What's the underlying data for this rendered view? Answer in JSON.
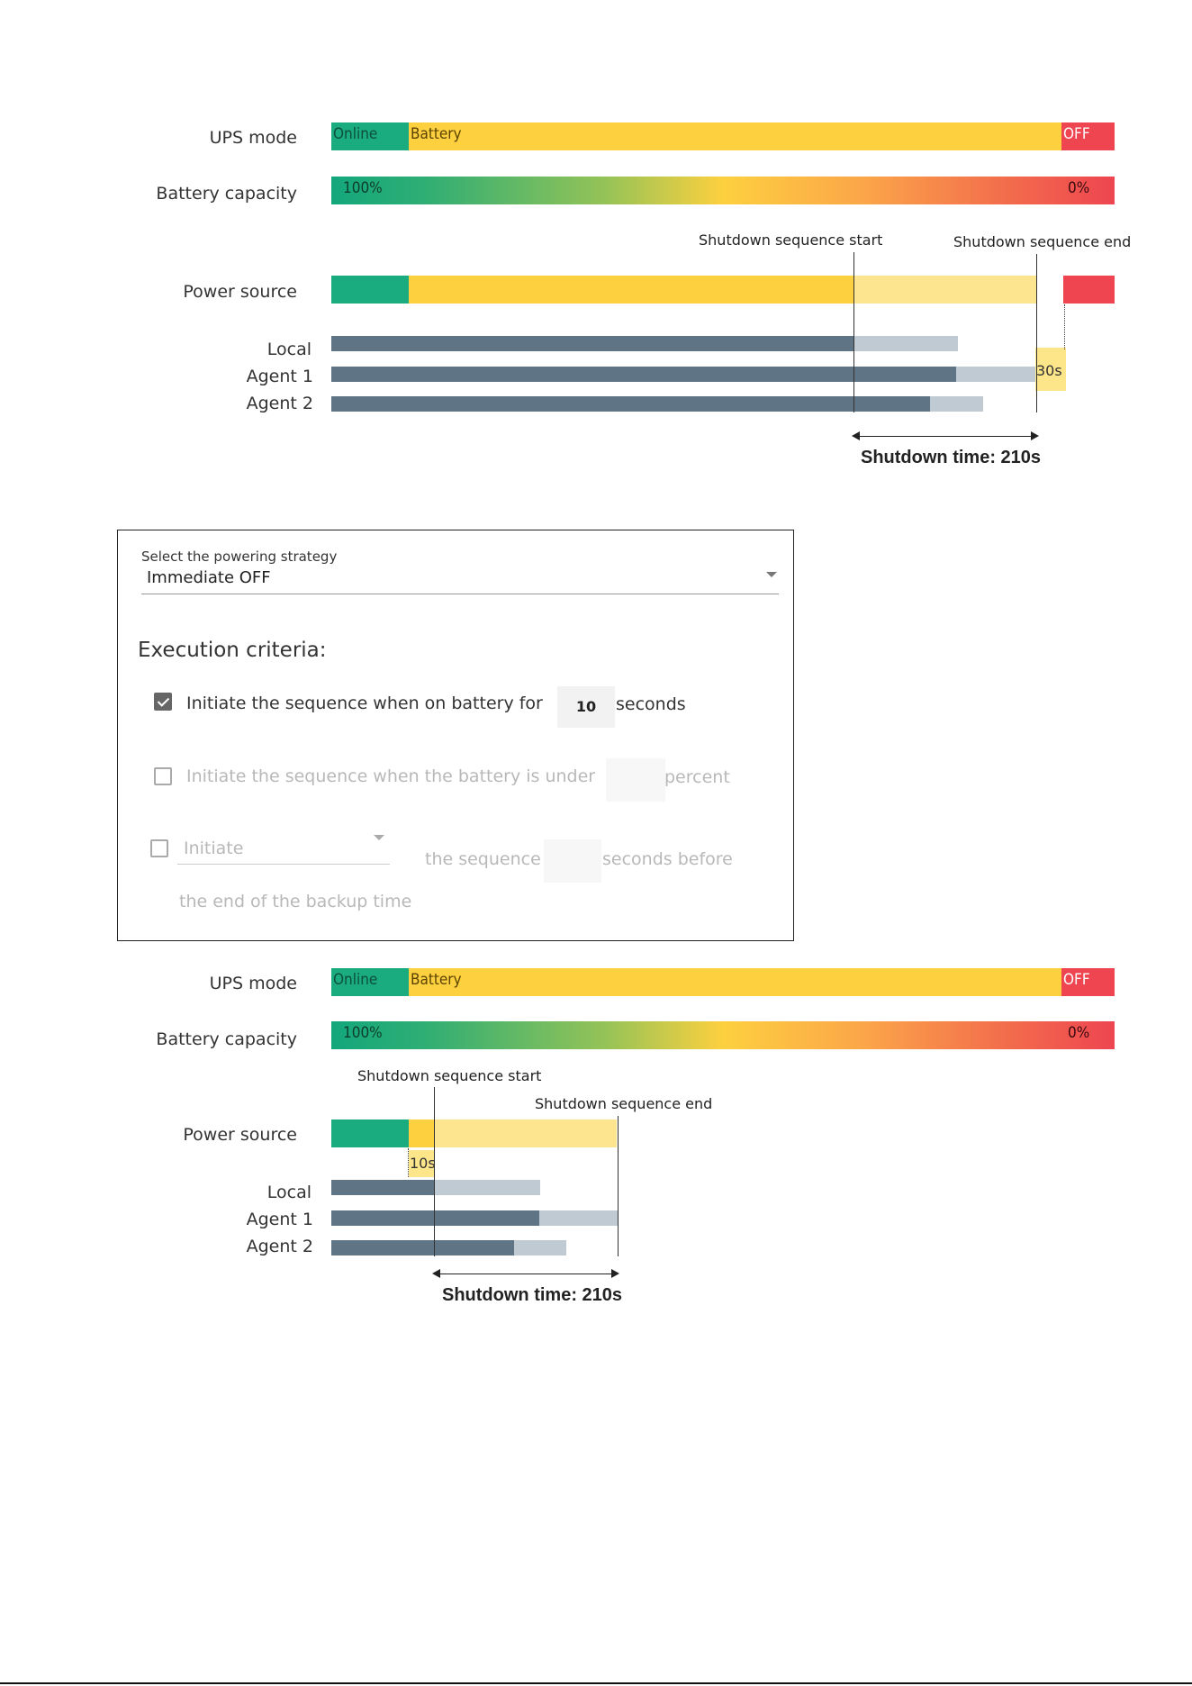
{
  "chart1": {
    "label_ups_mode": "UPS mode",
    "label_battery_capacity": "Battery capacity",
    "label_power_source": "Power source",
    "label_local": "Local",
    "label_agent1": "Agent 1",
    "label_agent2": "Agent 2",
    "ups_online": "Online",
    "ups_battery": "Battery",
    "ups_off": "OFF",
    "cap_start": "100%",
    "cap_end": "0%",
    "seq_start": "Shutdown sequence start",
    "seq_end": "Shutdown sequence end",
    "delay_tag": "30s",
    "shutdown_time": "Shutdown time: 210s"
  },
  "panel": {
    "select_label": "Select the powering strategy",
    "select_value": "Immediate OFF",
    "section_title": "Execution criteria:",
    "crit1_text": "Initiate  the sequence when on battery for",
    "crit1_value": "10",
    "crit1_unit": "seconds",
    "crit1_checked": true,
    "crit2_text": "Initiate the sequence when the battery is under",
    "crit2_unit": "percent",
    "crit2_checked": false,
    "crit3_select": "Initiate",
    "crit3_text": "the sequence",
    "crit3_unit": "seconds before",
    "crit3_text2": "the end of the backup time",
    "crit3_checked": false
  },
  "chart2": {
    "label_ups_mode": "UPS mode",
    "label_battery_capacity": "Battery capacity",
    "label_power_source": "Power source",
    "label_local": "Local",
    "label_agent1": "Agent 1",
    "label_agent2": "Agent 2",
    "ups_online": "Online",
    "ups_battery": "Battery",
    "ups_off": "OFF",
    "cap_start": "100%",
    "cap_end": "0%",
    "seq_start": "Shutdown sequence start",
    "seq_end": "Shutdown sequence end",
    "delay_tag": "10s",
    "shutdown_time": "Shutdown time: 210s"
  },
  "colors": {
    "online": "#1aab7e",
    "battery": "#fdd03f",
    "battery_light": "#fde48e",
    "off": "#ee4550",
    "agent_dark": "#5f7485",
    "agent_light": "#c0cad3"
  }
}
